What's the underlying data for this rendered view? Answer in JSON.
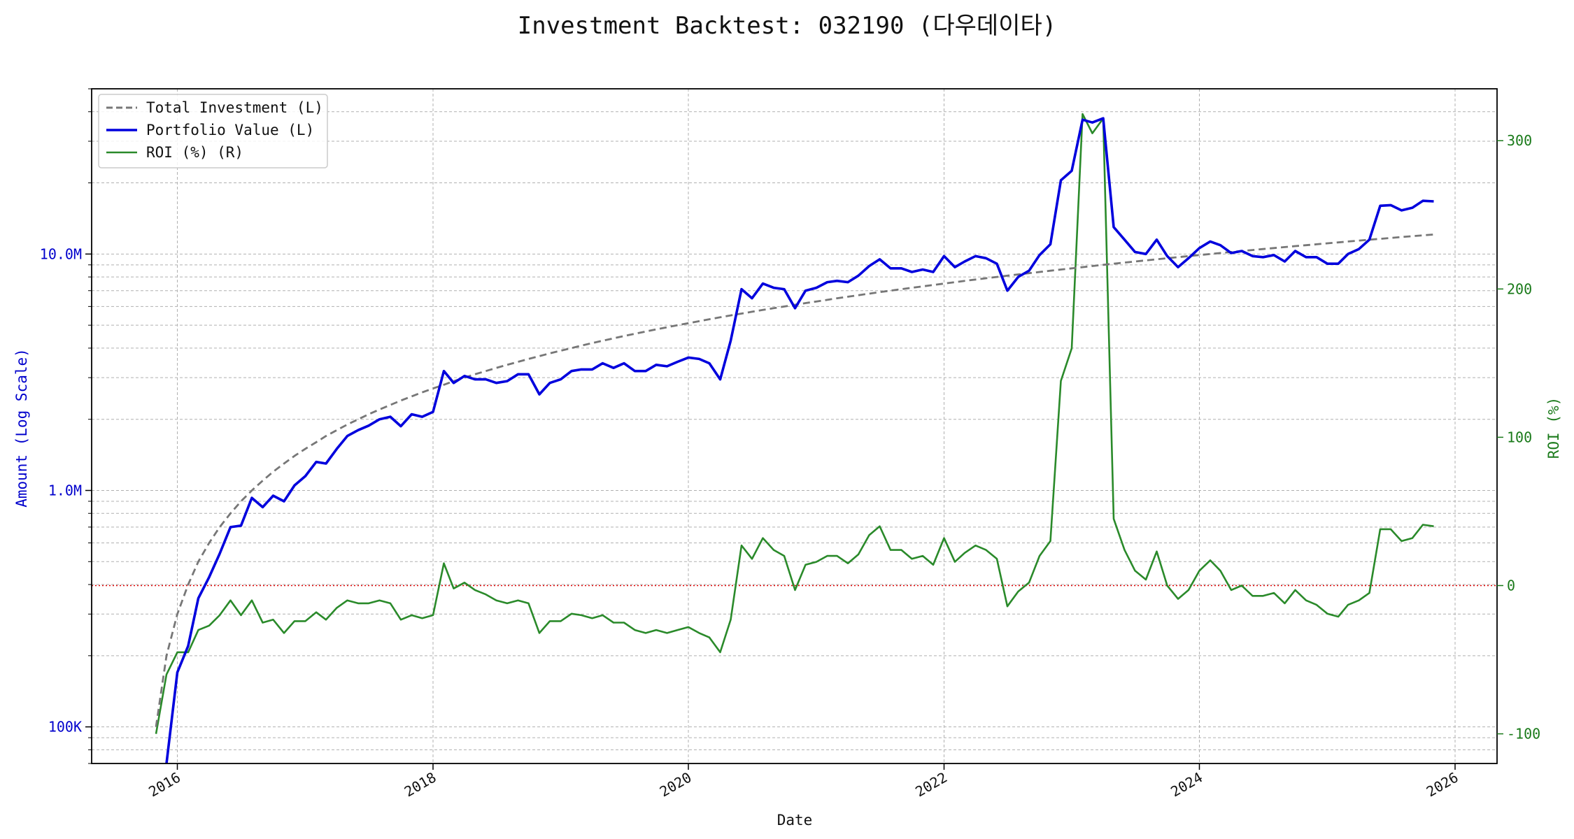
{
  "colors": {
    "portfolio": "#0000dd",
    "investment": "#777777",
    "roi": "#2a8a2a",
    "zero_line": "#dd0000",
    "grid": "#b0b0b0",
    "left_axis_text": "#0000cc",
    "right_axis_text": "#1a7a1a"
  },
  "chart_data": {
    "type": "line",
    "title": "Investment Backtest: 032190 (다우데이타)",
    "xlabel": "Date",
    "ylabel_left": "Amount (Log Scale)",
    "ylabel_right": "ROI (%)",
    "y_left_scale": "log",
    "y_left_range": [
      70000,
      50000000
    ],
    "y_right_range": [
      -120,
      335
    ],
    "x_range": [
      "2015-05-01",
      "2026-05-01"
    ],
    "x_ticks": [
      "2016",
      "2018",
      "2020",
      "2022",
      "2024",
      "2026"
    ],
    "y_left_ticks": [
      {
        "value": 100000,
        "label": "100K"
      },
      {
        "value": 1000000,
        "label": "1.0M"
      },
      {
        "value": 10000000,
        "label": "10.0M"
      }
    ],
    "y_right_ticks": [
      -100,
      0,
      100,
      200,
      300
    ],
    "grid": true,
    "legend": "top-left",
    "reference_line": {
      "axis": "right",
      "value": 0,
      "style": "dotted"
    },
    "dates": [
      "2015-11",
      "2015-12",
      "2016-01",
      "2016-02",
      "2016-03",
      "2016-04",
      "2016-05",
      "2016-06",
      "2016-07",
      "2016-08",
      "2016-09",
      "2016-10",
      "2016-11",
      "2016-12",
      "2017-01",
      "2017-02",
      "2017-03",
      "2017-04",
      "2017-05",
      "2017-06",
      "2017-07",
      "2017-08",
      "2017-09",
      "2017-10",
      "2017-11",
      "2017-12",
      "2018-01",
      "2018-02",
      "2018-03",
      "2018-04",
      "2018-05",
      "2018-06",
      "2018-07",
      "2018-08",
      "2018-09",
      "2018-10",
      "2018-11",
      "2018-12",
      "2019-01",
      "2019-02",
      "2019-03",
      "2019-04",
      "2019-05",
      "2019-06",
      "2019-07",
      "2019-08",
      "2019-09",
      "2019-10",
      "2019-11",
      "2019-12",
      "2020-01",
      "2020-02",
      "2020-03",
      "2020-04",
      "2020-05",
      "2020-06",
      "2020-07",
      "2020-08",
      "2020-09",
      "2020-10",
      "2020-11",
      "2020-12",
      "2021-01",
      "2021-02",
      "2021-03",
      "2021-04",
      "2021-05",
      "2021-06",
      "2021-07",
      "2021-08",
      "2021-09",
      "2021-10",
      "2021-11",
      "2021-12",
      "2022-01",
      "2022-02",
      "2022-03",
      "2022-04",
      "2022-05",
      "2022-06",
      "2022-07",
      "2022-08",
      "2022-09",
      "2022-10",
      "2022-11",
      "2022-12",
      "2023-01",
      "2023-02",
      "2023-03",
      "2023-04",
      "2023-05",
      "2023-06",
      "2023-07",
      "2023-08",
      "2023-09",
      "2023-10",
      "2023-11",
      "2023-12",
      "2024-01",
      "2024-02",
      "2024-03",
      "2024-04",
      "2024-05",
      "2024-06",
      "2024-07",
      "2024-08",
      "2024-09",
      "2024-10",
      "2024-11",
      "2024-12",
      "2025-01",
      "2025-02",
      "2025-03",
      "2025-04",
      "2025-05",
      "2025-06",
      "2025-07",
      "2025-08",
      "2025-09",
      "2025-10",
      "2025-11"
    ],
    "series": [
      {
        "name": "Total Investment (L)",
        "axis": "left",
        "style": "dashed",
        "values": [
          100000,
          200000,
          300000,
          400000,
          500000,
          600000,
          700000,
          800000,
          900000,
          1000000,
          1100000,
          1200000,
          1300000,
          1400000,
          1500000,
          1600000,
          1700000,
          1800000,
          1900000,
          2000000,
          2100000,
          2200000,
          2300000,
          2400000,
          2500000,
          2600000,
          2700000,
          2800000,
          2900000,
          3000000,
          3100000,
          3200000,
          3300000,
          3400000,
          3500000,
          3600000,
          3700000,
          3800000,
          3900000,
          4000000,
          4100000,
          4200000,
          4300000,
          4400000,
          4500000,
          4600000,
          4700000,
          4800000,
          4900000,
          5000000,
          5100000,
          5200000,
          5300000,
          5400000,
          5500000,
          5600000,
          5700000,
          5800000,
          5900000,
          6000000,
          6100000,
          6200000,
          6300000,
          6400000,
          6500000,
          6600000,
          6700000,
          6800000,
          6900000,
          7000000,
          7100000,
          7200000,
          7300000,
          7400000,
          7500000,
          7600000,
          7700000,
          7800000,
          7900000,
          8000000,
          8100000,
          8200000,
          8300000,
          8400000,
          8500000,
          8600000,
          8700000,
          8800000,
          8900000,
          9000000,
          9100000,
          9200000,
          9300000,
          9400000,
          9500000,
          9600000,
          9700000,
          9800000,
          9900000,
          10000000,
          10100000,
          10200000,
          10300000,
          10400000,
          10500000,
          10600000,
          10700000,
          10800000,
          10900000,
          11000000,
          11100000,
          11200000,
          11300000,
          11400000,
          11500000,
          11600000,
          11700000,
          11800000,
          11900000,
          12000000,
          12100000
        ]
      },
      {
        "name": "Portfolio Value (L)",
        "axis": "left",
        "style": "solid",
        "values": [
          null,
          50000,
          170000,
          220000,
          350000,
          430000,
          540000,
          700000,
          710000,
          930000,
          850000,
          950000,
          900000,
          1050000,
          1150000,
          1320000,
          1300000,
          1500000,
          1700000,
          1800000,
          1880000,
          2000000,
          2050000,
          1870000,
          2100000,
          2050000,
          2150000,
          3200000,
          2850000,
          3050000,
          2950000,
          2950000,
          2850000,
          2900000,
          3100000,
          3100000,
          2550000,
          2850000,
          2950000,
          3200000,
          3250000,
          3250000,
          3450000,
          3300000,
          3450000,
          3200000,
          3200000,
          3400000,
          3350000,
          3500000,
          3650000,
          3600000,
          3450000,
          2950000,
          4300000,
          7100000,
          6500000,
          7500000,
          7200000,
          7100000,
          5900000,
          7000000,
          7200000,
          7600000,
          7700000,
          7600000,
          8100000,
          8900000,
          9500000,
          8700000,
          8700000,
          8400000,
          8600000,
          8400000,
          9800000,
          8800000,
          9300000,
          9800000,
          9600000,
          9100000,
          7000000,
          8000000,
          8500000,
          9900000,
          11000000,
          20500000,
          22500000,
          37000000,
          36000000,
          37500000,
          13000000,
          11500000,
          10200000,
          10000000,
          11500000,
          9800000,
          8800000,
          9600000,
          10600000,
          11300000,
          10900000,
          10100000,
          10300000,
          9800000,
          9700000,
          9900000,
          9300000,
          10300000,
          9700000,
          9700000,
          9100000,
          9100000,
          10000000,
          10500000,
          11500000,
          16000000,
          16100000,
          15300000,
          15700000,
          16800000,
          16700000
        ]
      },
      {
        "name": "ROI (%) (R)",
        "axis": "right",
        "style": "solid",
        "values": [
          -100,
          -60,
          -45,
          -45,
          -30,
          -27,
          -20,
          -10,
          -20,
          -10,
          -25,
          -23,
          -32,
          -24,
          -24,
          -18,
          -23,
          -15,
          -10,
          -12,
          -12,
          -10,
          -12,
          -23,
          -20,
          -22,
          -20,
          15,
          -2,
          2,
          -3,
          -6,
          -10,
          -12,
          -10,
          -12,
          -32,
          -24,
          -24,
          -19,
          -20,
          -22,
          -20,
          -25,
          -25,
          -30,
          -32,
          -30,
          -32,
          -30,
          -28,
          -32,
          -35,
          -45,
          -23,
          27,
          18,
          32,
          24,
          20,
          -3,
          14,
          16,
          20,
          20,
          15,
          21,
          34,
          40,
          24,
          24,
          18,
          20,
          14,
          32,
          16,
          22,
          27,
          24,
          18,
          -14,
          -4,
          2,
          20,
          30,
          138,
          160,
          318,
          305,
          315,
          45,
          24,
          10,
          4,
          23,
          0,
          -9,
          -3,
          10,
          17,
          10,
          -3,
          0,
          -7,
          -7,
          -5,
          -12,
          -3,
          -10,
          -13,
          -19,
          -21,
          -13,
          -10,
          -5,
          38,
          38,
          30,
          32,
          41,
          40
        ]
      }
    ]
  }
}
